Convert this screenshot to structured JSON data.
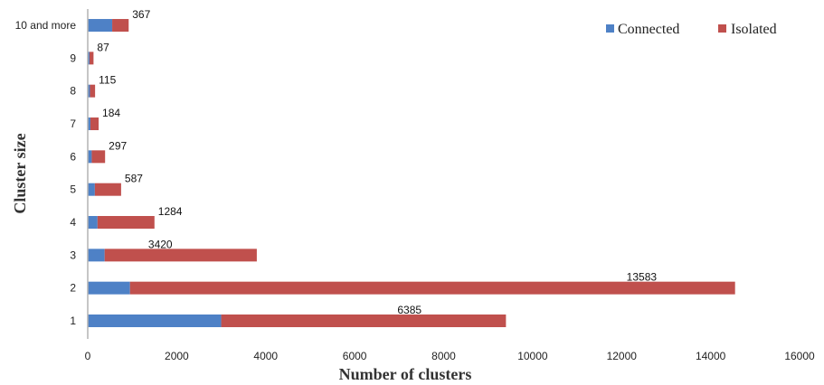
{
  "chart_data": {
    "type": "bar",
    "orientation": "horizontal",
    "stacked": true,
    "title": "",
    "xlabel": "Number of clusters",
    "ylabel": "Cluster size",
    "xlim": [
      0,
      16000
    ],
    "xticks": [
      0,
      2000,
      4000,
      6000,
      8000,
      10000,
      12000,
      14000,
      16000
    ],
    "categories": [
      "1",
      "2",
      "3",
      "4",
      "5",
      "6",
      "7",
      "8",
      "9",
      "10 and more"
    ],
    "series": [
      {
        "name": "Connected",
        "color": "#4e81c6",
        "values": [
          3000,
          950,
          380,
          220,
          160,
          90,
          60,
          50,
          40,
          550
        ]
      },
      {
        "name": "Isolated",
        "color": "#c0504d",
        "values": [
          6400,
          13600,
          3420,
          1280,
          590,
          300,
          185,
          115,
          90,
          370
        ]
      }
    ],
    "data_labels": [
      "6385",
      "13583",
      "3420",
      "1284",
      "587",
      "297",
      "184",
      "115",
      "87",
      "367"
    ],
    "grid": false,
    "legend": "top-right"
  }
}
